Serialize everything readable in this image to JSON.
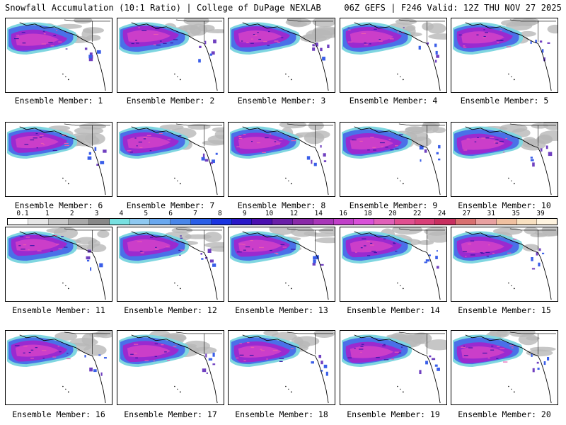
{
  "header": {
    "title_left": "Snowfall Accumulation (10:1 Ratio) | College of DuPage NEXLAB",
    "title_right": "06Z GEFS | F246 Valid: 12Z THU NOV 27 2025"
  },
  "colorbar": {
    "units_hint": "inches",
    "labels": [
      "0.1",
      "1",
      "2",
      "3",
      "4",
      "5",
      "6",
      "7",
      "8",
      "9",
      "10",
      "12",
      "14",
      "16",
      "18",
      "20",
      "22",
      "24",
      "27",
      "31",
      "35",
      "39"
    ],
    "colors": [
      "#ffffff",
      "#e6e6e6",
      "#c8c8c8",
      "#a8a8a8",
      "#888888",
      "#77e0e0",
      "#8ec8f0",
      "#6aa8ee",
      "#4a86e8",
      "#2a5ee6",
      "#1a34e0",
      "#2a18c8",
      "#4a10b0",
      "#6a20a8",
      "#8a2aa8",
      "#a836b8",
      "#c040c8",
      "#d850d8",
      "#e060b8",
      "#e05090",
      "#d84078",
      "#c83060",
      "#d87070",
      "#e8a0a0",
      "#f0c0a0",
      "#f8e0c0",
      "#fff4e0"
    ]
  },
  "members": [
    {
      "label": "Ensemble Member: 1"
    },
    {
      "label": "Ensemble Member: 2"
    },
    {
      "label": "Ensemble Member: 3"
    },
    {
      "label": "Ensemble Member: 4"
    },
    {
      "label": "Ensemble Member: 5"
    },
    {
      "label": "Ensemble Member: 6"
    },
    {
      "label": "Ensemble Member: 7"
    },
    {
      "label": "Ensemble Member: 8"
    },
    {
      "label": "Ensemble Member: 9"
    },
    {
      "label": "Ensemble Member: 10"
    },
    {
      "label": "Ensemble Member: 11"
    },
    {
      "label": "Ensemble Member: 12"
    },
    {
      "label": "Ensemble Member: 13"
    },
    {
      "label": "Ensemble Member: 14"
    },
    {
      "label": "Ensemble Member: 15"
    },
    {
      "label": "Ensemble Member: 16"
    },
    {
      "label": "Ensemble Member: 17"
    },
    {
      "label": "Ensemble Member: 18"
    },
    {
      "label": "Ensemble Member: 19"
    },
    {
      "label": "Ensemble Member: 20"
    }
  ]
}
